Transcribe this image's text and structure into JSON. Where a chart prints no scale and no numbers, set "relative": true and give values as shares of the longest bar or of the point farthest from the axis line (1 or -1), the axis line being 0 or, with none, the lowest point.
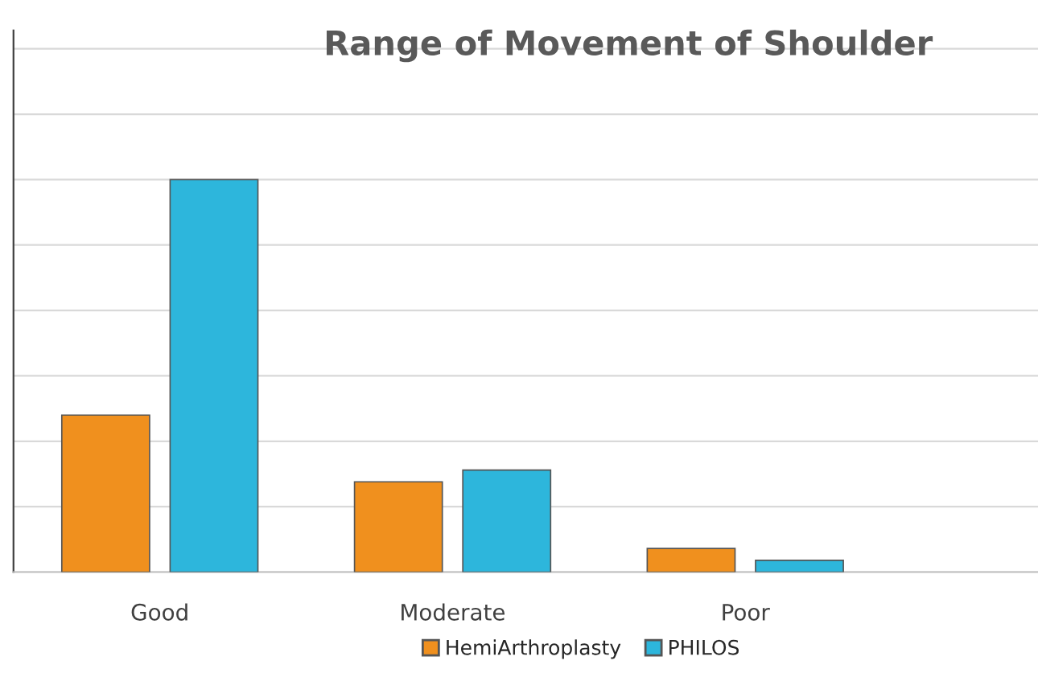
{
  "chart_data": {
    "type": "bar",
    "title": "Range of Movement of Shoulder",
    "categories": [
      "Good",
      "Moderate",
      "Poor"
    ],
    "series": [
      {
        "name": "HemiArthroplasty",
        "color": "#f0901e",
        "values": [
          0.4,
          0.23,
          0.06
        ]
      },
      {
        "name": "PHILOS",
        "color": "#2db6dc",
        "values": [
          1,
          0.26,
          0.03
        ]
      }
    ],
    "relative": true,
    "grid": "y",
    "legend": "bottom"
  }
}
